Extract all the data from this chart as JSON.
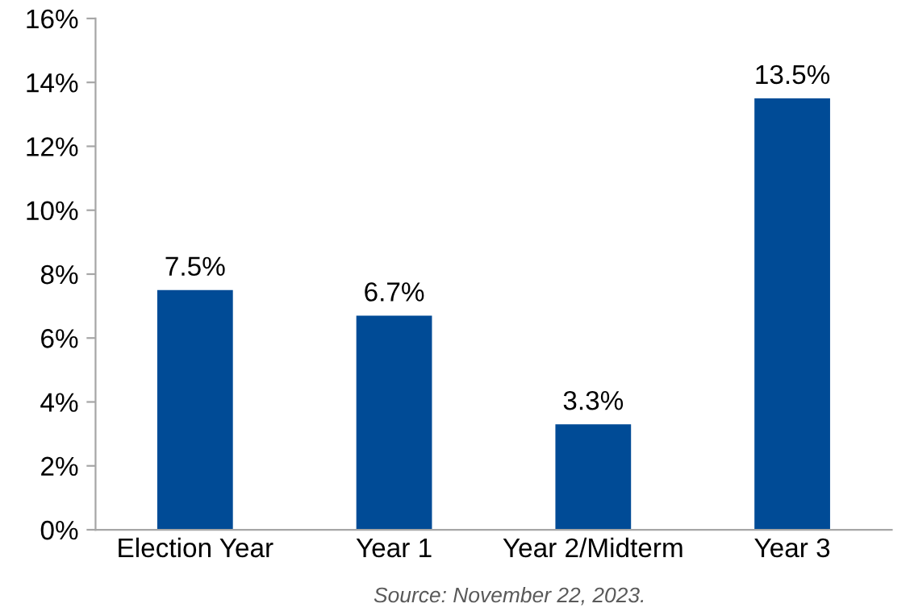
{
  "chart_data": {
    "type": "bar",
    "categories": [
      "Election Year",
      "Year 1",
      "Year 2/Midterm",
      "Year 3"
    ],
    "values": [
      7.5,
      6.7,
      3.3,
      13.5
    ],
    "value_labels": [
      "7.5%",
      "6.7%",
      "3.3%",
      "13.5%"
    ],
    "color": "#004b96",
    "ylim": [
      0,
      16
    ],
    "yticks": [
      {
        "value": 0,
        "label": "0%"
      },
      {
        "value": 2,
        "label": "2%"
      },
      {
        "value": 4,
        "label": "4%"
      },
      {
        "value": 6,
        "label": "6%"
      },
      {
        "value": 8,
        "label": "8%"
      },
      {
        "value": 10,
        "label": "10%"
      },
      {
        "value": 12,
        "label": "12%"
      },
      {
        "value": 14,
        "label": "14%"
      },
      {
        "value": 16,
        "label": "16%"
      }
    ],
    "grid": false,
    "annotations": [
      "Source: November 22, 2023."
    ]
  }
}
